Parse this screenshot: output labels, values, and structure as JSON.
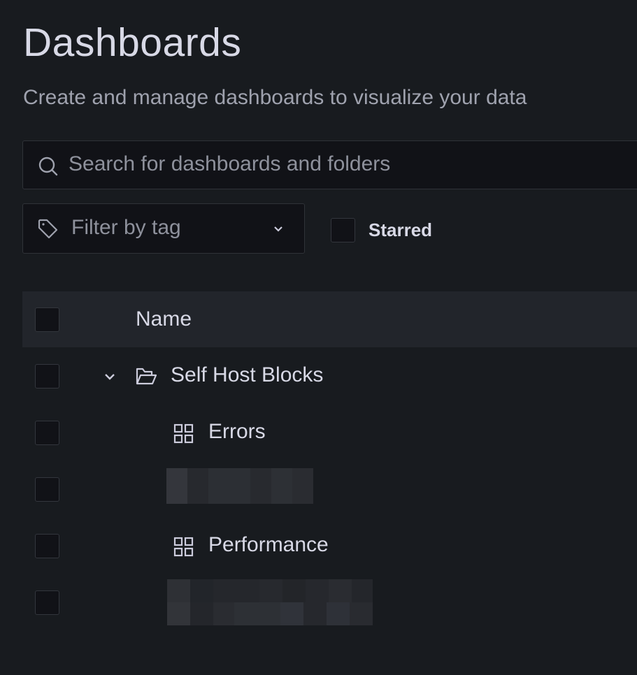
{
  "page": {
    "title": "Dashboards",
    "subtitle": "Create and manage dashboards to visualize your data"
  },
  "search": {
    "placeholder": "Search for dashboards and folders",
    "icon": "search-icon"
  },
  "filters": {
    "tag_filter_placeholder": "Filter by tag",
    "starred_label": "Starred",
    "starred_checked": false
  },
  "table": {
    "header": {
      "name": "Name"
    },
    "rows": [
      {
        "type": "folder",
        "label": "Self Host Blocks",
        "expanded": true,
        "icon": "folder-open-icon"
      },
      {
        "type": "dashboard",
        "label": "Errors",
        "icon": "dashboard-grid-icon"
      },
      {
        "type": "redacted",
        "label": ""
      },
      {
        "type": "dashboard",
        "label": "Performance",
        "icon": "dashboard-grid-icon"
      },
      {
        "type": "redacted",
        "label": ""
      }
    ]
  },
  "colors": {
    "background": "#181b1f",
    "input_bg": "#111217",
    "header_bg": "#22252b",
    "text": "#ccccdc"
  }
}
